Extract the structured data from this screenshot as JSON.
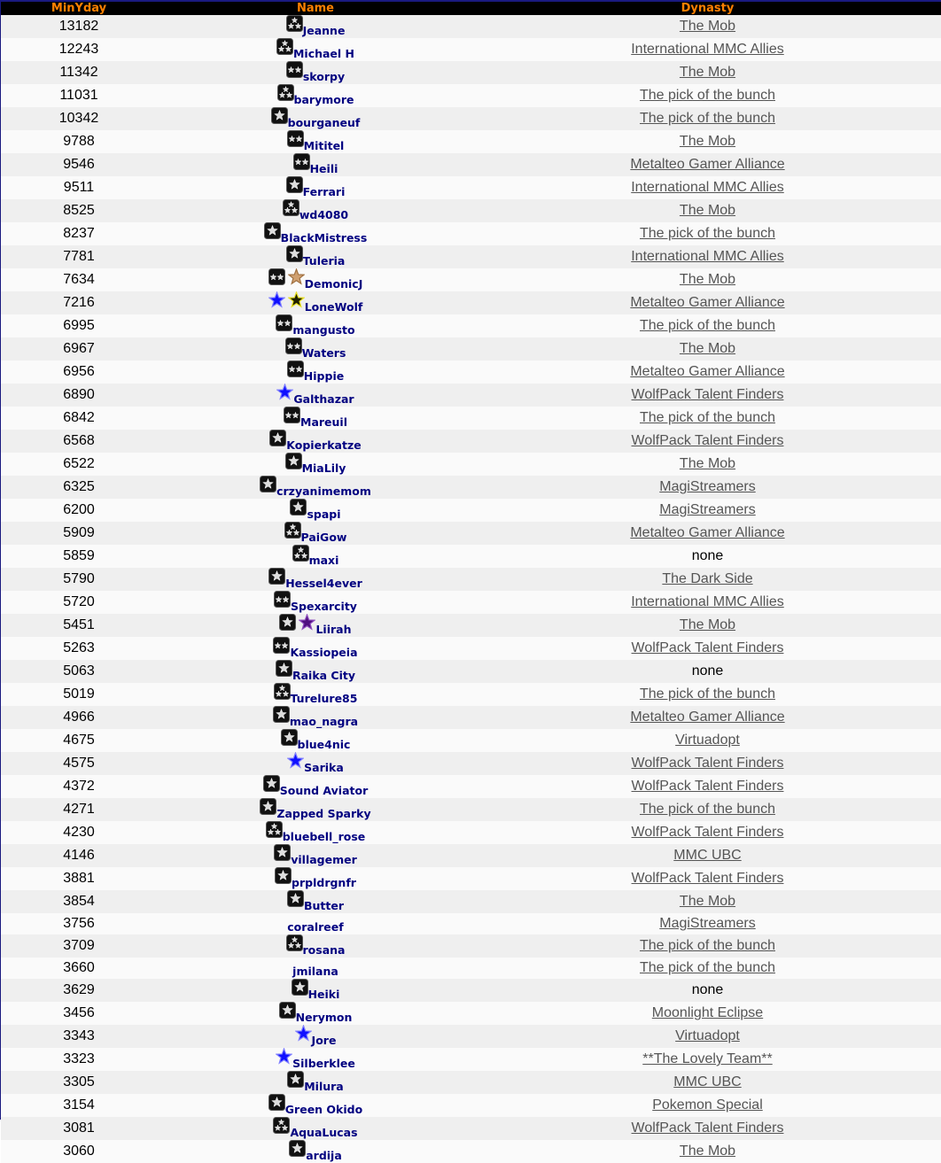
{
  "headers": {
    "minyday": "MinYday",
    "name": "Name",
    "dynasty": "Dynasty"
  },
  "colors": {
    "header_bg": "#000000",
    "header_text": "#ff8000",
    "name_text": "#000080",
    "link": "#555555",
    "row_odd": "#efefef",
    "row_even": "#fafafa"
  },
  "rows": [
    {
      "minyday": "13182",
      "name": "Jeanne",
      "icons": [
        "badge-3-stars"
      ],
      "dynasty": "The Mob"
    },
    {
      "minyday": "12243",
      "name": "Michael H",
      "icons": [
        "badge-3-stars"
      ],
      "dynasty": "International MMC Allies"
    },
    {
      "minyday": "11342",
      "name": "skorpy",
      "icons": [
        "badge-2-stars"
      ],
      "dynasty": "The Mob"
    },
    {
      "minyday": "11031",
      "name": "barymore",
      "icons": [
        "badge-3-stars"
      ],
      "dynasty": "The pick of the bunch"
    },
    {
      "minyday": "10342",
      "name": "bourganeuf",
      "icons": [
        "badge-1-star"
      ],
      "dynasty": "The pick of the bunch"
    },
    {
      "minyday": "9788",
      "name": "Mititel",
      "icons": [
        "badge-2-stars"
      ],
      "dynasty": "The Mob"
    },
    {
      "minyday": "9546",
      "name": "Heili",
      "icons": [
        "badge-2-stars"
      ],
      "dynasty": "Metalteo Gamer Alliance"
    },
    {
      "minyday": "9511",
      "name": "Ferrari",
      "icons": [
        "badge-1-star"
      ],
      "dynasty": "International MMC Allies"
    },
    {
      "minyday": "8525",
      "name": "wd4080",
      "icons": [
        "badge-3-stars"
      ],
      "dynasty": "The Mob"
    },
    {
      "minyday": "8237",
      "name": "BlackMistress",
      "icons": [
        "badge-1-star"
      ],
      "dynasty": "The pick of the bunch"
    },
    {
      "minyday": "7781",
      "name": "Tuleria",
      "icons": [
        "badge-1-star"
      ],
      "dynasty": "International MMC Allies"
    },
    {
      "minyday": "7634",
      "name": "DemonicJ",
      "icons": [
        "badge-2-stars",
        "tan-star"
      ],
      "dynasty": "The Mob"
    },
    {
      "minyday": "7216",
      "name": "LoneWolf",
      "icons": [
        "blue-star",
        "yellow-star"
      ],
      "dynasty": "Metalteo Gamer Alliance"
    },
    {
      "minyday": "6995",
      "name": "mangusto",
      "icons": [
        "badge-2-stars"
      ],
      "dynasty": "The pick of the bunch"
    },
    {
      "minyday": "6967",
      "name": "Waters",
      "icons": [
        "badge-2-stars"
      ],
      "dynasty": "The Mob"
    },
    {
      "minyday": "6956",
      "name": "Hippie",
      "icons": [
        "badge-2-stars"
      ],
      "dynasty": "Metalteo Gamer Alliance"
    },
    {
      "minyday": "6890",
      "name": "Galthazar",
      "icons": [
        "blue-star"
      ],
      "dynasty": "WolfPack Talent Finders"
    },
    {
      "minyday": "6842",
      "name": "Mareuil",
      "icons": [
        "badge-2-stars"
      ],
      "dynasty": "The pick of the bunch"
    },
    {
      "minyday": "6568",
      "name": "Kopierkatze",
      "icons": [
        "badge-1-star"
      ],
      "dynasty": "WolfPack Talent Finders"
    },
    {
      "minyday": "6522",
      "name": "MiaLily",
      "icons": [
        "badge-1-star"
      ],
      "dynasty": "The Mob"
    },
    {
      "minyday": "6325",
      "name": "crzyanimemom",
      "icons": [
        "badge-1-star"
      ],
      "dynasty": "MagiStreamers"
    },
    {
      "minyday": "6200",
      "name": "spapi",
      "icons": [
        "badge-1-star"
      ],
      "dynasty": "MagiStreamers"
    },
    {
      "minyday": "5909",
      "name": "PaiGow",
      "icons": [
        "badge-3-stars"
      ],
      "dynasty": "Metalteo Gamer Alliance"
    },
    {
      "minyday": "5859",
      "name": "maxi",
      "icons": [
        "badge-3-stars"
      ],
      "dynasty": "none",
      "no_link": true
    },
    {
      "minyday": "5790",
      "name": "Hessel4ever",
      "icons": [
        "badge-1-star"
      ],
      "dynasty": "The Dark Side"
    },
    {
      "minyday": "5720",
      "name": "Spexarcity",
      "icons": [
        "badge-2-stars"
      ],
      "dynasty": "International MMC Allies"
    },
    {
      "minyday": "5451",
      "name": "Liirah",
      "icons": [
        "badge-1-star",
        "purple-star"
      ],
      "dynasty": "The Mob"
    },
    {
      "minyday": "5263",
      "name": "Kassiopeia",
      "icons": [
        "badge-2-stars"
      ],
      "dynasty": "WolfPack Talent Finders"
    },
    {
      "minyday": "5063",
      "name": "Raika City",
      "icons": [
        "badge-1-star"
      ],
      "dynasty": "none",
      "no_link": true
    },
    {
      "minyday": "5019",
      "name": "Turelure85",
      "icons": [
        "badge-3-stars"
      ],
      "dynasty": "The pick of the bunch"
    },
    {
      "minyday": "4966",
      "name": "mao_nagra",
      "icons": [
        "badge-1-star"
      ],
      "dynasty": "Metalteo Gamer Alliance"
    },
    {
      "minyday": "4675",
      "name": "blue4nic",
      "icons": [
        "badge-1-star"
      ],
      "dynasty": "Virtuadopt"
    },
    {
      "minyday": "4575",
      "name": "Sarika",
      "icons": [
        "blue-star"
      ],
      "dynasty": "WolfPack Talent Finders"
    },
    {
      "minyday": "4372",
      "name": "Sound Aviator",
      "icons": [
        "badge-1-star"
      ],
      "dynasty": "WolfPack Talent Finders"
    },
    {
      "minyday": "4271",
      "name": "Zapped Sparky",
      "icons": [
        "badge-1-star"
      ],
      "dynasty": "The pick of the bunch"
    },
    {
      "minyday": "4230",
      "name": "bluebell_rose",
      "icons": [
        "badge-3-stars"
      ],
      "dynasty": "WolfPack Talent Finders"
    },
    {
      "minyday": "4146",
      "name": "villagemer",
      "icons": [
        "badge-1-star"
      ],
      "dynasty": "MMC UBC"
    },
    {
      "minyday": "3881",
      "name": "prpldrgnfr",
      "icons": [
        "badge-1-star"
      ],
      "dynasty": "WolfPack Talent Finders"
    },
    {
      "minyday": "3854",
      "name": "Butter",
      "icons": [
        "badge-1-star"
      ],
      "dynasty": "The Mob"
    },
    {
      "minyday": "3756",
      "name": "coralreef",
      "icons": [],
      "dynasty": "MagiStreamers"
    },
    {
      "minyday": "3709",
      "name": "rosana",
      "icons": [
        "badge-3-stars"
      ],
      "dynasty": "The pick of the bunch"
    },
    {
      "minyday": "3660",
      "name": "jmilana",
      "icons": [],
      "dynasty": "The pick of the bunch"
    },
    {
      "minyday": "3629",
      "name": "Heiki",
      "icons": [
        "badge-1-star"
      ],
      "dynasty": "none",
      "no_link": true
    },
    {
      "minyday": "3456",
      "name": "Nerymon",
      "icons": [
        "badge-1-star"
      ],
      "dynasty": "Moonlight Eclipse"
    },
    {
      "minyday": "3343",
      "name": "Jore",
      "icons": [
        "blue-star"
      ],
      "dynasty": "Virtuadopt"
    },
    {
      "minyday": "3323",
      "name": "Silberklee",
      "icons": [
        "blue-star"
      ],
      "dynasty": "**The Lovely Team**"
    },
    {
      "minyday": "3305",
      "name": "Milura",
      "icons": [
        "badge-1-star"
      ],
      "dynasty": "MMC UBC"
    },
    {
      "minyday": "3154",
      "name": "Green Okido",
      "icons": [
        "badge-1-star"
      ],
      "dynasty": "Pokemon Special"
    },
    {
      "minyday": "3081",
      "name": "AquaLucas",
      "icons": [
        "badge-3-stars"
      ],
      "dynasty": "WolfPack Talent Finders"
    },
    {
      "minyday": "3060",
      "name": "ardija",
      "icons": [
        "badge-1-star"
      ],
      "dynasty": "The Mob"
    }
  ]
}
